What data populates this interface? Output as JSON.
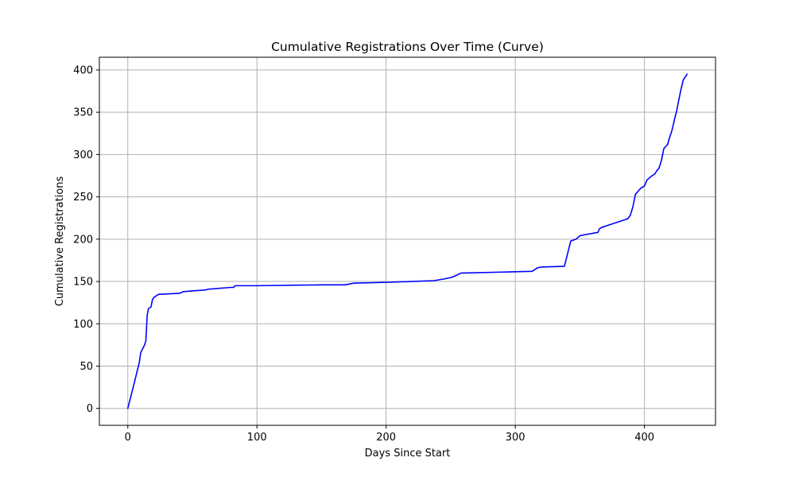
{
  "chart_data": {
    "type": "line",
    "title": "Cumulative Registrations Over Time (Curve)",
    "xlabel": "Days Since Start",
    "ylabel": "Cumulative Registrations",
    "xlim": [
      -22,
      455
    ],
    "ylim": [
      -20,
      415
    ],
    "xticks": [
      0,
      100,
      200,
      300,
      400
    ],
    "yticks": [
      0,
      50,
      100,
      150,
      200,
      250,
      300,
      350,
      400
    ],
    "grid": true,
    "line_color": "#0000ff",
    "grid_color": "#b0b0b0",
    "series": [
      {
        "x": [
          0,
          5,
          9,
          10,
          13,
          14,
          15,
          16,
          18,
          19,
          20,
          22,
          24,
          26,
          40,
          43,
          60,
          63,
          80,
          82,
          83,
          100,
          150,
          168,
          175,
          200,
          220,
          237,
          245,
          251,
          254,
          258,
          260,
          300,
          313,
          317,
          320,
          338,
          343,
          347,
          350,
          353,
          364,
          365,
          367,
          387,
          389,
          391,
          393,
          397,
          400,
          402,
          405,
          408,
          410,
          411,
          413,
          415,
          418,
          419,
          421,
          422,
          423,
          425,
          426,
          428,
          430,
          433
        ],
        "y": [
          0,
          30,
          55,
          66,
          75,
          80,
          110,
          118,
          120,
          128,
          131,
          133,
          135,
          135,
          136,
          138,
          140,
          141,
          143,
          143,
          145,
          145,
          146,
          146,
          148,
          149,
          150,
          151,
          153,
          155,
          157,
          160,
          160,
          161.5,
          162,
          166,
          167,
          168,
          198,
          200,
          204,
          205,
          208,
          212,
          214,
          224,
          228,
          238,
          253,
          260,
          263,
          270,
          274,
          277,
          282,
          283,
          292,
          307,
          312,
          318,
          327,
          333,
          340,
          352,
          360,
          375,
          388,
          395
        ]
      }
    ]
  }
}
